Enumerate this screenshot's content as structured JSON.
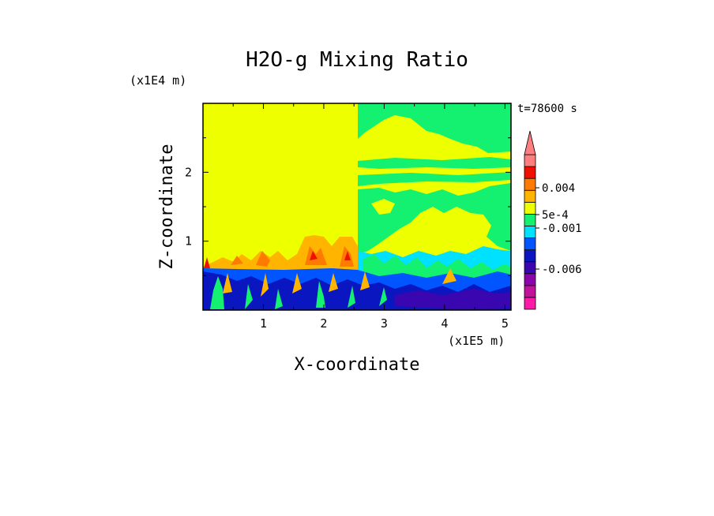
{
  "chart_data": {
    "type": "heatmap",
    "title": "H2O-g Mixing Ratio",
    "xlabel": "X-coordinate",
    "ylabel": "Z-coordinate",
    "x_unit": "(x1E5 m)",
    "y_unit": "(x1E4 m)",
    "time_label": "t=78600 s",
    "xlim": [
      0,
      5.1
    ],
    "ylim": [
      0,
      3.0
    ],
    "x_ticks": [
      "1",
      "2",
      "3",
      "4",
      "5"
    ],
    "y_ticks": [
      "1",
      "2"
    ],
    "colorbar": {
      "levels": 13,
      "extend": "max",
      "tick_labels": [
        "0.004",
        "5e-4",
        "-0.001",
        "-0.006"
      ],
      "colors": [
        "#ff1aa8",
        "#c2119a",
        "#8a06a8",
        "#3a06b0",
        "#0a16c0",
        "#0055ff",
        "#00e0ff",
        "#14f070",
        "#eeff00",
        "#ffb400",
        "#ff7a00",
        "#f01000",
        "#ff7f80"
      ]
    }
  }
}
